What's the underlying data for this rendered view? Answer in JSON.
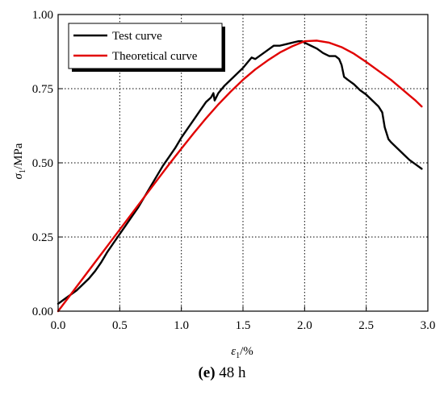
{
  "chart_data": {
    "type": "line",
    "xlabel_symbol": "ε",
    "xlabel_sub": "1",
    "xlabel_unit": "/%",
    "ylabel_symbol": "σ",
    "ylabel_sub": "1",
    "ylabel_unit": "/MPa",
    "xlim": [
      0.0,
      3.0
    ],
    "ylim": [
      0.0,
      1.0
    ],
    "xticks": [
      "0.0",
      "0.5",
      "1.0",
      "1.5",
      "2.0",
      "2.5",
      "3.0"
    ],
    "xtick_values": [
      0,
      0.5,
      1.0,
      1.5,
      2.0,
      2.5,
      3.0
    ],
    "yticks": [
      "0.00",
      "0.25",
      "0.50",
      "0.75",
      "1.00"
    ],
    "ytick_values": [
      0,
      0.25,
      0.5,
      0.75,
      1.0
    ],
    "grid": true,
    "legend_position": "top-left",
    "series": [
      {
        "name": "Test curve",
        "color": "#000000",
        "x": [
          0.0,
          0.05,
          0.1,
          0.15,
          0.2,
          0.25,
          0.3,
          0.35,
          0.4,
          0.45,
          0.5,
          0.55,
          0.6,
          0.65,
          0.7,
          0.75,
          0.8,
          0.85,
          0.9,
          0.95,
          1.0,
          1.05,
          1.1,
          1.15,
          1.2,
          1.24,
          1.26,
          1.27,
          1.3,
          1.35,
          1.4,
          1.45,
          1.5,
          1.55,
          1.57,
          1.6,
          1.65,
          1.7,
          1.75,
          1.8,
          1.85,
          1.9,
          1.95,
          1.98,
          2.0,
          2.05,
          2.1,
          2.15,
          2.2,
          2.25,
          2.28,
          2.3,
          2.32,
          2.35,
          2.4,
          2.45,
          2.5,
          2.55,
          2.6,
          2.63,
          2.65,
          2.68,
          2.7,
          2.75,
          2.8,
          2.85,
          2.9,
          2.95
        ],
        "values": [
          0.025,
          0.04,
          0.055,
          0.07,
          0.09,
          0.11,
          0.135,
          0.165,
          0.2,
          0.23,
          0.26,
          0.29,
          0.32,
          0.35,
          0.385,
          0.42,
          0.455,
          0.49,
          0.52,
          0.55,
          0.585,
          0.615,
          0.645,
          0.675,
          0.705,
          0.72,
          0.735,
          0.71,
          0.735,
          0.76,
          0.78,
          0.8,
          0.82,
          0.845,
          0.855,
          0.85,
          0.865,
          0.88,
          0.895,
          0.895,
          0.9,
          0.905,
          0.91,
          0.91,
          0.905,
          0.895,
          0.885,
          0.87,
          0.86,
          0.86,
          0.85,
          0.83,
          0.79,
          0.78,
          0.765,
          0.745,
          0.73,
          0.71,
          0.69,
          0.67,
          0.62,
          0.58,
          0.57,
          0.55,
          0.53,
          0.51,
          0.495,
          0.48
        ]
      },
      {
        "name": "Theoretical curve",
        "color": "#e10000",
        "x": [
          0.0,
          0.1,
          0.2,
          0.3,
          0.4,
          0.5,
          0.6,
          0.7,
          0.8,
          0.9,
          1.0,
          1.1,
          1.2,
          1.3,
          1.4,
          1.5,
          1.6,
          1.7,
          1.8,
          1.9,
          2.0,
          2.1,
          2.2,
          2.3,
          2.4,
          2.5,
          2.6,
          2.7,
          2.8,
          2.9,
          2.95
        ],
        "values": [
          0.0,
          0.055,
          0.11,
          0.165,
          0.22,
          0.275,
          0.33,
          0.385,
          0.44,
          0.495,
          0.548,
          0.6,
          0.65,
          0.697,
          0.74,
          0.78,
          0.815,
          0.845,
          0.872,
          0.893,
          0.91,
          0.912,
          0.905,
          0.89,
          0.868,
          0.84,
          0.81,
          0.78,
          0.745,
          0.71,
          0.69
        ]
      }
    ]
  },
  "caption": {
    "label": "(e)",
    "text": " 48 h"
  }
}
